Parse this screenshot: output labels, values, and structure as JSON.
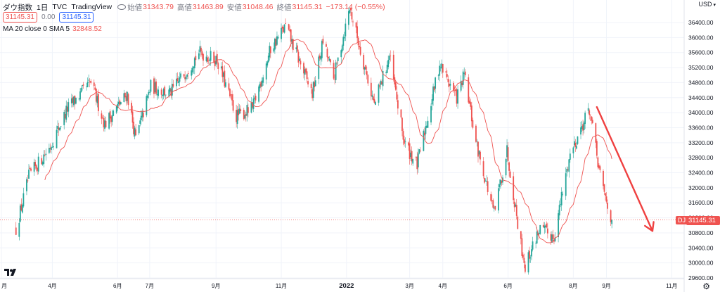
{
  "header": {
    "title": "ダウ指数",
    "interval": "1日",
    "source": "TVC",
    "watermark": "TradingView",
    "ohlc": [
      {
        "label": "始値",
        "value": "31343.79"
      },
      {
        "label": "高値",
        "value": "31463.89"
      },
      {
        "label": "安値",
        "value": "31048.46"
      },
      {
        "label": "終値",
        "value": "31145.31"
      }
    ],
    "change": "−173.14 (−0.55%)",
    "sell_price": "31145.31",
    "spread": "0.00",
    "buy_price": "31145.31"
  },
  "indicator": {
    "label": "MA 20 close 0 SMA 5",
    "value": "32848.52"
  },
  "axis": {
    "currency": "USD",
    "y_ticks": [
      "36400.00",
      "36000.00",
      "35600.00",
      "35200.00",
      "34800.00",
      "34400.00",
      "34000.00",
      "33600.00",
      "33200.00",
      "32800.00",
      "32400.00",
      "32000.00",
      "31600.00",
      "31200.00",
      "30800.00",
      "30400.00",
      "30000.00",
      "29600.00"
    ],
    "x_ticks": [
      "月",
      "4月",
      "6月",
      "7月",
      "9月",
      "11月",
      "2022",
      "3月",
      "4月",
      "6月",
      "8月",
      "9月",
      "11月"
    ]
  },
  "last_price": {
    "symbol": "DJI",
    "value": "31145.31"
  },
  "colors": {
    "up": "#26a69a",
    "down": "#ef5350",
    "ma": "#ef5350",
    "arrow": "#ef4040",
    "grid": "#f0f3fa"
  },
  "icons": {
    "logo": "tradingview-logo-icon",
    "settings": "gear-icon"
  },
  "chart_data": {
    "type": "candlestick",
    "x_range": [
      "2021-02",
      "2022-11"
    ],
    "ylim": [
      29600,
      36800
    ],
    "ma_period": 20,
    "close_path": [
      {
        "date": "2021-02-26",
        "close": 30900
      },
      {
        "date": "2021-03-10",
        "close": 32300
      },
      {
        "date": "2021-03-30",
        "close": 33100
      },
      {
        "date": "2021-04-15",
        "close": 34100
      },
      {
        "date": "2021-05-07",
        "close": 34800
      },
      {
        "date": "2021-05-20",
        "close": 33700
      },
      {
        "date": "2021-06-10",
        "close": 34500
      },
      {
        "date": "2021-06-18",
        "close": 33300
      },
      {
        "date": "2021-07-02",
        "close": 34700
      },
      {
        "date": "2021-07-20",
        "close": 34500
      },
      {
        "date": "2021-08-16",
        "close": 35600
      },
      {
        "date": "2021-09-02",
        "close": 35400
      },
      {
        "date": "2021-09-20",
        "close": 33900
      },
      {
        "date": "2021-10-05",
        "close": 34100
      },
      {
        "date": "2021-10-22",
        "close": 35700
      },
      {
        "date": "2021-11-05",
        "close": 36300
      },
      {
        "date": "2021-11-30",
        "close": 34500
      },
      {
        "date": "2021-12-10",
        "close": 35900
      },
      {
        "date": "2021-12-20",
        "close": 34900
      },
      {
        "date": "2022-01-04",
        "close": 36800
      },
      {
        "date": "2022-01-27",
        "close": 34200
      },
      {
        "date": "2022-02-10",
        "close": 35500
      },
      {
        "date": "2022-02-24",
        "close": 33200
      },
      {
        "date": "2022-03-08",
        "close": 32600
      },
      {
        "date": "2022-03-29",
        "close": 35300
      },
      {
        "date": "2022-04-14",
        "close": 34400
      },
      {
        "date": "2022-04-21",
        "close": 35000
      },
      {
        "date": "2022-05-02",
        "close": 33200
      },
      {
        "date": "2022-05-19",
        "close": 31300
      },
      {
        "date": "2022-05-31",
        "close": 33000
      },
      {
        "date": "2022-06-13",
        "close": 30500
      },
      {
        "date": "2022-06-17",
        "close": 29900
      },
      {
        "date": "2022-06-30",
        "close": 30900
      },
      {
        "date": "2022-07-14",
        "close": 30700
      },
      {
        "date": "2022-07-29",
        "close": 32900
      },
      {
        "date": "2022-08-16",
        "close": 34100
      },
      {
        "date": "2022-08-26",
        "close": 32300
      },
      {
        "date": "2022-09-02",
        "close": 31500
      },
      {
        "date": "2022-09-06",
        "close": 31145.31
      }
    ],
    "annotation": {
      "type": "arrow",
      "from": {
        "date": "2022-08-23",
        "price": 34150
      },
      "to": {
        "date": "2022-10-14",
        "price": 30850
      }
    }
  }
}
